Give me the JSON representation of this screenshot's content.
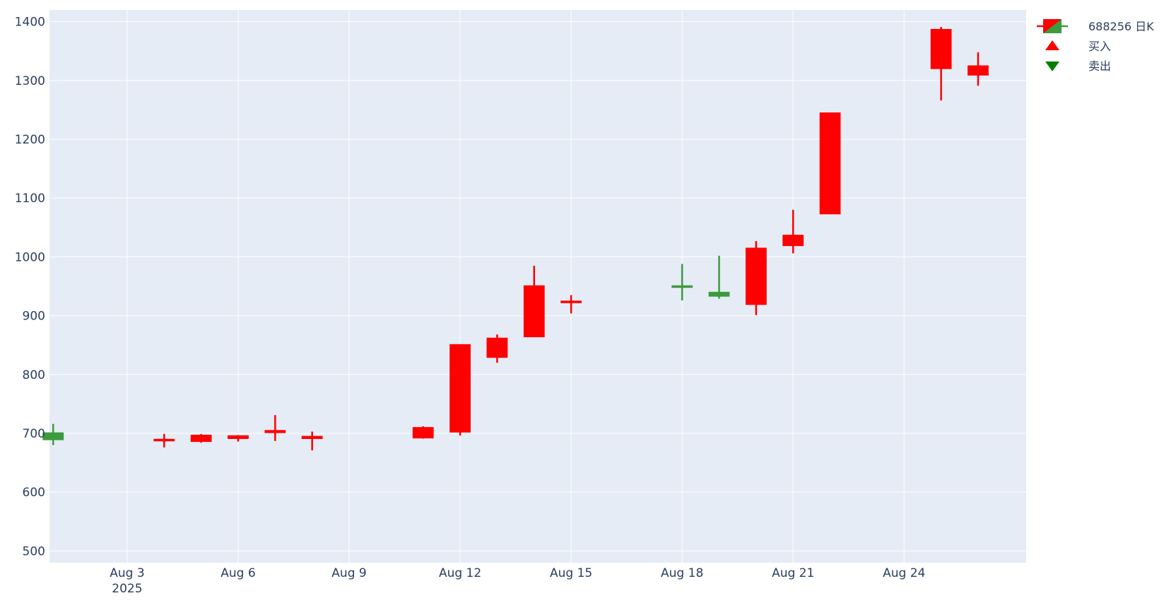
{
  "chart_data": {
    "type": "candlestick",
    "title": "",
    "xlabel": "",
    "ylabel": "",
    "x_range": [
      "2025-08-01",
      "2025-08-27"
    ],
    "ylim": [
      480,
      1420
    ],
    "y_ticks": [
      500,
      600,
      700,
      800,
      900,
      1000,
      1100,
      1200,
      1300,
      1400
    ],
    "x_ticks": [
      {
        "date": "2025-08-03",
        "label": "Aug 3",
        "sublabel": "2025"
      },
      {
        "date": "2025-08-06",
        "label": "Aug 6",
        "sublabel": ""
      },
      {
        "date": "2025-08-09",
        "label": "Aug 9",
        "sublabel": ""
      },
      {
        "date": "2025-08-12",
        "label": "Aug 12",
        "sublabel": ""
      },
      {
        "date": "2025-08-15",
        "label": "Aug 15",
        "sublabel": ""
      },
      {
        "date": "2025-08-18",
        "label": "Aug 18",
        "sublabel": ""
      },
      {
        "date": "2025-08-21",
        "label": "Aug 21",
        "sublabel": ""
      },
      {
        "date": "2025-08-24",
        "label": "Aug 24",
        "sublabel": ""
      }
    ],
    "grid": true,
    "legend_position": "top-right",
    "colors": {
      "background": "#e5ecf6",
      "increasing": "#ff0000",
      "decreasing": "#3d9a3d",
      "buy_marker": "#ff0000",
      "sell_marker": "#008000",
      "grid": "#ffffff",
      "text": "#2a3f5f"
    },
    "legend": [
      {
        "name": "688256 日K",
        "symbol": "candlestick"
      },
      {
        "name": "买入",
        "symbol": "triangle-up"
      },
      {
        "name": "卖出",
        "symbol": "triangle-down"
      }
    ],
    "series": [
      {
        "name": "688256 日K",
        "candles": [
          {
            "date": "2025-08-01",
            "open": 701,
            "high": 716,
            "low": 680,
            "close": 689
          },
          {
            "date": "2025-08-04",
            "open": 688,
            "high": 699,
            "low": 676,
            "close": 690
          },
          {
            "date": "2025-08-05",
            "open": 686,
            "high": 699,
            "low": 684,
            "close": 697
          },
          {
            "date": "2025-08-06",
            "open": 691,
            "high": 697,
            "low": 686,
            "close": 696
          },
          {
            "date": "2025-08-07",
            "open": 701,
            "high": 731,
            "low": 687,
            "close": 705
          },
          {
            "date": "2025-08-08",
            "open": 691,
            "high": 703,
            "low": 671,
            "close": 695
          },
          {
            "date": "2025-08-11",
            "open": 692,
            "high": 712,
            "low": 691,
            "close": 710
          },
          {
            "date": "2025-08-12",
            "open": 702,
            "high": 851,
            "low": 696,
            "close": 851
          },
          {
            "date": "2025-08-13",
            "open": 829,
            "high": 868,
            "low": 820,
            "close": 862
          },
          {
            "date": "2025-08-14",
            "open": 864,
            "high": 985,
            "low": 864,
            "close": 951
          },
          {
            "date": "2025-08-15",
            "open": 923,
            "high": 935,
            "low": 904,
            "close": 925
          },
          {
            "date": "2025-08-18",
            "open": 951,
            "high": 988,
            "low": 926,
            "close": 949
          },
          {
            "date": "2025-08-19",
            "open": 940,
            "high": 1002,
            "low": 929,
            "close": 933
          },
          {
            "date": "2025-08-20",
            "open": 919,
            "high": 1027,
            "low": 901,
            "close": 1015
          },
          {
            "date": "2025-08-21",
            "open": 1019,
            "high": 1080,
            "low": 1006,
            "close": 1037
          },
          {
            "date": "2025-08-22",
            "open": 1073,
            "high": 1245,
            "low": 1073,
            "close": 1245
          },
          {
            "date": "2025-08-25",
            "open": 1320,
            "high": 1391,
            "low": 1266,
            "close": 1387
          },
          {
            "date": "2025-08-26",
            "open": 1309,
            "high": 1348,
            "low": 1291,
            "close": 1325
          }
        ]
      }
    ]
  }
}
